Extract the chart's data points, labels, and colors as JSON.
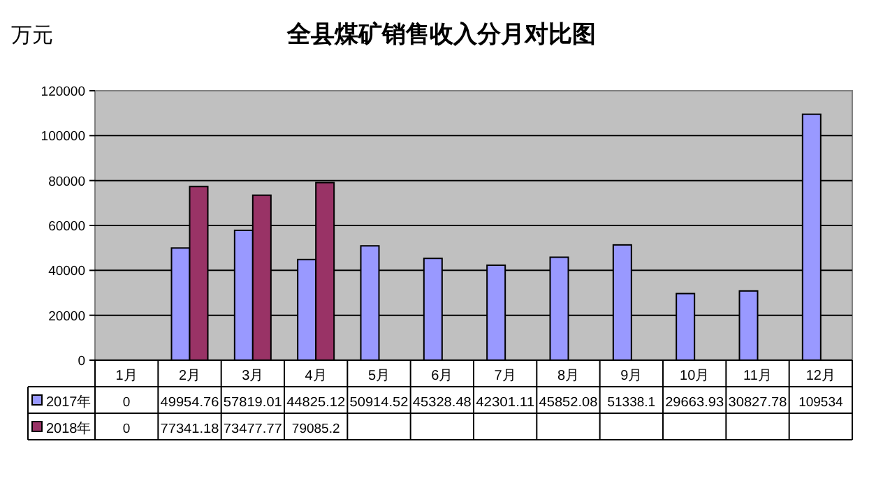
{
  "chart_data": {
    "type": "bar",
    "title": "全县煤矿销售收入分月对比图",
    "ylabel": "万元",
    "categories": [
      "1月",
      "2月",
      "3月",
      "4月",
      "5月",
      "6月",
      "7月",
      "8月",
      "9月",
      "10月",
      "11月",
      "12月"
    ],
    "series": [
      {
        "name": "2017年",
        "color": "#9999ff",
        "values": [
          0,
          49954.76,
          57819.01,
          44825.12,
          50914.52,
          45328.48,
          42301.11,
          45852.08,
          51338.1,
          29663.93,
          30827.78,
          109534
        ]
      },
      {
        "name": "2018年",
        "color": "#993366",
        "values": [
          0,
          77341.18,
          73477.77,
          79085.2,
          null,
          null,
          null,
          null,
          null,
          null,
          null,
          null
        ]
      }
    ],
    "ylim": [
      0,
      120000
    ],
    "yticks": [
      0,
      20000,
      40000,
      60000,
      80000,
      100000,
      120000
    ],
    "grid": "y",
    "legend": "bottom left",
    "data_labels": true
  }
}
